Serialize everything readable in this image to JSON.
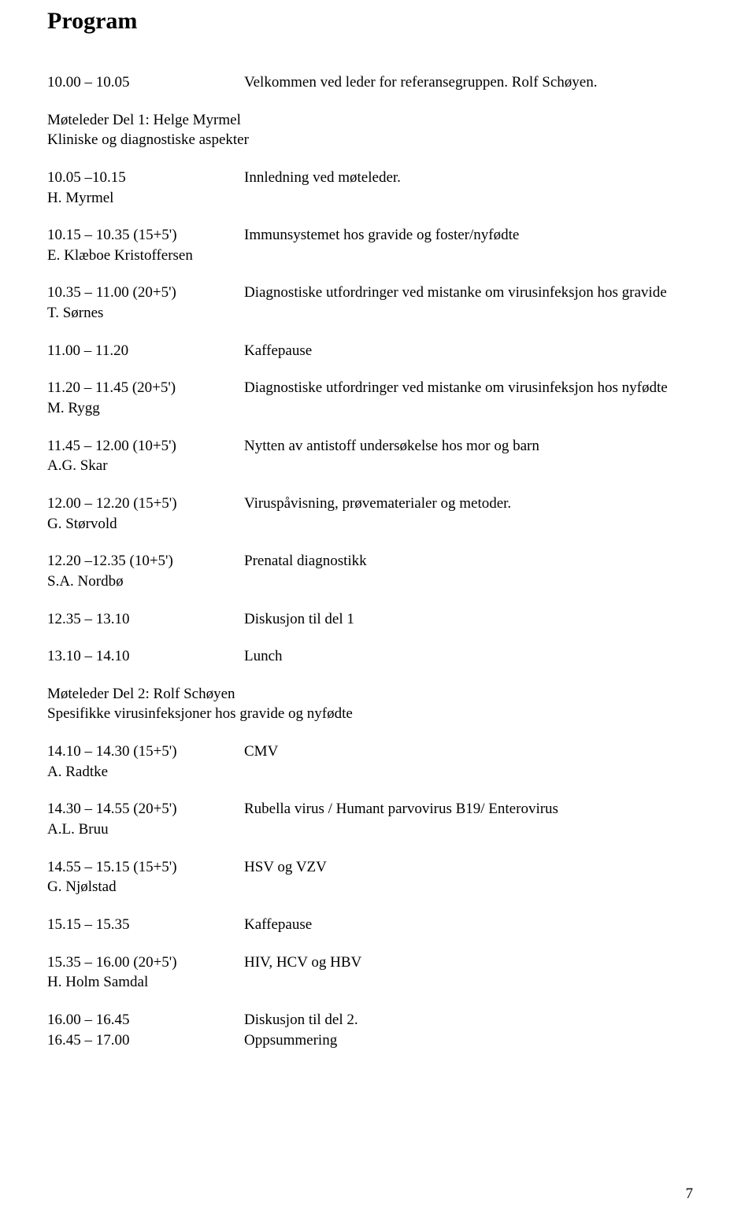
{
  "title": "Program",
  "page_number": "7",
  "section1": {
    "leader_line1": "Møteleder Del 1: Helge Myrmel",
    "leader_line2": "Kliniske og diagnostiske aspekter"
  },
  "section2": {
    "leader_line1": "Møteleder Del 2: Rolf Schøyen",
    "leader_line2": "Spesifikke virusinfeksjoner hos gravide og nyfødte"
  },
  "rows": {
    "r1": {
      "time": "10.00 – 10.05",
      "speaker": "",
      "desc": "Velkommen ved leder for referansegruppen. Rolf Schøyen."
    },
    "r2": {
      "time": "10.05 –10.15",
      "speaker": "H. Myrmel",
      "desc": "Innledning ved møteleder."
    },
    "r3": {
      "time": "10.15 – 10.35 (15+5')",
      "speaker": "E. Klæboe Kristoffersen",
      "desc": "Immunsystemet hos gravide og foster/nyfødte"
    },
    "r4": {
      "time": "10.35 – 11.00 (20+5')",
      "speaker": "T. Sørnes",
      "desc": "Diagnostiske utfordringer ved mistanke om virusinfeksjon hos gravide"
    },
    "r5": {
      "time": "11.00 – 11.20",
      "speaker": "",
      "desc": "Kaffepause"
    },
    "r6": {
      "time": "11.20 – 11.45 (20+5')",
      "speaker": "M. Rygg",
      "desc": "Diagnostiske utfordringer ved mistanke om virusinfeksjon hos nyfødte"
    },
    "r7": {
      "time": "11.45 – 12.00 (10+5')",
      "speaker": "A.G. Skar",
      "desc": "Nytten av antistoff undersøkelse hos mor og barn"
    },
    "r8": {
      "time": "12.00 – 12.20 (15+5')",
      "speaker": "G. Størvold",
      "desc": "Viruspåvisning, prøvematerialer og metoder."
    },
    "r9": {
      "time": "12.20 –12.35 (10+5')",
      "speaker": "S.A. Nordbø",
      "desc": "Prenatal diagnostikk"
    },
    "r10": {
      "time": "12.35 – 13.10",
      "speaker": "",
      "desc": "Diskusjon til del 1"
    },
    "r11": {
      "time": "13.10 – 14.10",
      "speaker": "",
      "desc": "Lunch"
    },
    "r12": {
      "time": "14.10 – 14.30 (15+5')",
      "speaker": "A.  Radtke",
      "desc": "CMV"
    },
    "r13": {
      "time": "14.30 – 14.55 (20+5')",
      "speaker": "A.L. Bruu",
      "desc": "Rubella virus / Humant parvovirus B19/ Enterovirus"
    },
    "r14": {
      "time": "14.55 – 15.15 (15+5')",
      "speaker": "G. Njølstad",
      "desc": "HSV og VZV"
    },
    "r15": {
      "time": "15.15 – 15.35",
      "speaker": "",
      "desc": "Kaffepause"
    },
    "r16": {
      "time": "15.35 – 16.00 (20+5')",
      "speaker": "H. Holm Samdal",
      "desc": "HIV, HCV og HBV"
    },
    "r17": {
      "time": "16.00 – 16.45",
      "speaker": "",
      "desc": "Diskusjon til del 2."
    },
    "r18": {
      "time": "16.45 – 17.00",
      "speaker": "",
      "desc": "Oppsummering"
    }
  }
}
